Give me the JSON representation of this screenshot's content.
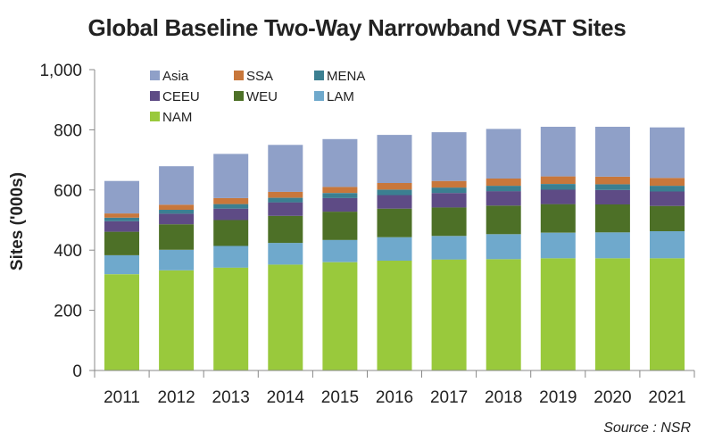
{
  "chart_data": {
    "type": "bar",
    "stacked": true,
    "title": "Global Baseline Two-Way Narrowband VSAT Sites",
    "xlabel": "",
    "ylabel": "Sites ('000s)",
    "ylim": [
      0,
      1000
    ],
    "yticks": [
      "0",
      "200",
      "400",
      "600",
      "800",
      "1,000"
    ],
    "ytick_values": [
      0,
      200,
      400,
      600,
      800,
      1000
    ],
    "grid": false,
    "legend_placement": "top-left",
    "categories": [
      "2011",
      "2012",
      "2013",
      "2014",
      "2015",
      "2016",
      "2017",
      "2018",
      "2019",
      "2020",
      "2021"
    ],
    "series": [
      {
        "name": "NAM",
        "color": "#99c93c",
        "values": [
          320,
          333,
          342,
          352,
          360,
          365,
          369,
          370,
          373,
          373,
          373
        ]
      },
      {
        "name": "LAM",
        "color": "#6fa9cc",
        "values": [
          63,
          68,
          72,
          72,
          74,
          78,
          78,
          83,
          85,
          86,
          90
        ]
      },
      {
        "name": "WEU",
        "color": "#4d7027",
        "values": [
          78,
          85,
          86,
          90,
          94,
          95,
          95,
          95,
          95,
          93,
          84
        ]
      },
      {
        "name": "CEEU",
        "color": "#5e4b85",
        "values": [
          35,
          35,
          38,
          45,
          45,
          45,
          48,
          48,
          48,
          48,
          48
        ]
      },
      {
        "name": "MENA",
        "color": "#3b7f91",
        "values": [
          12,
          13,
          15,
          15,
          17,
          18,
          18,
          18,
          19,
          19,
          19
        ]
      },
      {
        "name": "SSA",
        "color": "#c8773b",
        "values": [
          14,
          17,
          20,
          20,
          20,
          22,
          22,
          24,
          25,
          25,
          26
        ]
      },
      {
        "name": "Asia",
        "color": "#8fa0c8",
        "values": [
          108,
          128,
          147,
          156,
          159,
          160,
          162,
          165,
          165,
          166,
          168
        ]
      }
    ],
    "legend_order": [
      "Asia",
      "SSA",
      "MENA",
      "CEEU",
      "WEU",
      "LAM",
      "NAM"
    ]
  },
  "source": "Source : NSR"
}
